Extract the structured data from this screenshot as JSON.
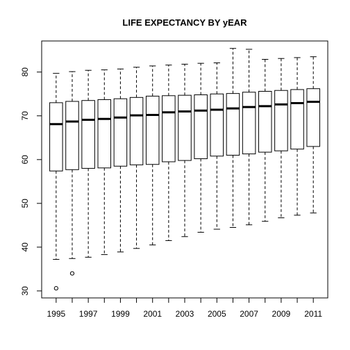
{
  "chart_data": {
    "type": "boxplot",
    "title": "LIFE EXPECTANCY BY yEAR",
    "xlabel": "",
    "ylabel": "",
    "ylim": [
      28.4,
      87.1
    ],
    "y_ticks": [
      30,
      40,
      50,
      60,
      70,
      80
    ],
    "x_tick_labels": [
      "1995",
      "1997",
      "1999",
      "2001",
      "2003",
      "2005",
      "2007",
      "2009",
      "2011"
    ],
    "categories": [
      "1995",
      "1996",
      "1997",
      "1998",
      "1999",
      "2000",
      "2001",
      "2002",
      "2003",
      "2004",
      "2005",
      "2006",
      "2007",
      "2008",
      "2009",
      "2010",
      "2011"
    ],
    "boxes": [
      {
        "year": "1995",
        "whisker_low": 37.2,
        "q1": 57.4,
        "median": 68.1,
        "q3": 73.0,
        "whisker_high": 79.7,
        "outliers": [
          30.6
        ]
      },
      {
        "year": "1996",
        "whisker_low": 37.4,
        "q1": 57.7,
        "median": 68.7,
        "q3": 73.3,
        "whisker_high": 80.1,
        "outliers": [
          34.0
        ]
      },
      {
        "year": "1997",
        "whisker_low": 37.7,
        "q1": 58.0,
        "median": 69.1,
        "q3": 73.5,
        "whisker_high": 80.4,
        "outliers": []
      },
      {
        "year": "1998",
        "whisker_low": 38.3,
        "q1": 58.1,
        "median": 69.3,
        "q3": 73.7,
        "whisker_high": 80.5,
        "outliers": []
      },
      {
        "year": "1999",
        "whisker_low": 38.9,
        "q1": 58.5,
        "median": 69.6,
        "q3": 73.9,
        "whisker_high": 80.7,
        "outliers": []
      },
      {
        "year": "2000",
        "whisker_low": 39.7,
        "q1": 58.8,
        "median": 70.1,
        "q3": 74.2,
        "whisker_high": 81.1,
        "outliers": []
      },
      {
        "year": "2001",
        "whisker_low": 40.5,
        "q1": 58.9,
        "median": 70.2,
        "q3": 74.5,
        "whisker_high": 81.4,
        "outliers": []
      },
      {
        "year": "2002",
        "whisker_low": 41.5,
        "q1": 59.5,
        "median": 70.8,
        "q3": 74.6,
        "whisker_high": 81.6,
        "outliers": []
      },
      {
        "year": "2003",
        "whisker_low": 42.4,
        "q1": 59.8,
        "median": 71.0,
        "q3": 74.7,
        "whisker_high": 81.8,
        "outliers": []
      },
      {
        "year": "2004",
        "whisker_low": 43.4,
        "q1": 60.2,
        "median": 71.2,
        "q3": 74.8,
        "whisker_high": 82.0,
        "outliers": []
      },
      {
        "year": "2005",
        "whisker_low": 44.1,
        "q1": 60.8,
        "median": 71.4,
        "q3": 75.0,
        "whisker_high": 82.1,
        "outliers": []
      },
      {
        "year": "2006",
        "whisker_low": 44.5,
        "q1": 61.0,
        "median": 71.7,
        "q3": 75.1,
        "whisker_high": 85.4,
        "outliers": []
      },
      {
        "year": "2007",
        "whisker_low": 45.1,
        "q1": 61.3,
        "median": 72.0,
        "q3": 75.4,
        "whisker_high": 85.2,
        "outliers": []
      },
      {
        "year": "2008",
        "whisker_low": 45.9,
        "q1": 61.7,
        "median": 72.2,
        "q3": 75.6,
        "whisker_high": 82.9,
        "outliers": []
      },
      {
        "year": "2009",
        "whisker_low": 46.7,
        "q1": 62.0,
        "median": 72.6,
        "q3": 75.8,
        "whisker_high": 83.1,
        "outliers": []
      },
      {
        "year": "2010",
        "whisker_low": 47.3,
        "q1": 62.4,
        "median": 72.9,
        "q3": 76.0,
        "whisker_high": 83.3,
        "outliers": []
      },
      {
        "year": "2011",
        "whisker_low": 47.8,
        "q1": 63.0,
        "median": 73.2,
        "q3": 76.2,
        "whisker_high": 83.5,
        "outliers": []
      }
    ],
    "grid": false,
    "legend": "none",
    "colors": {
      "box_fill": "#ffffff",
      "stroke": "#000000",
      "background": "#ffffff"
    }
  }
}
